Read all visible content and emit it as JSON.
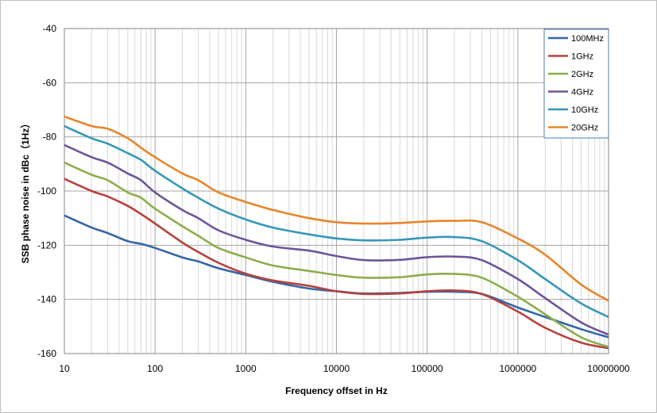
{
  "chart_data": {
    "type": "line",
    "xlabel": "Frequency offset in Hz",
    "ylabel": "SSB phase noise in dBc（1Hz）",
    "xscale": "log",
    "xlim": [
      10,
      10000000
    ],
    "ylim": [
      -160,
      -40
    ],
    "grid": true,
    "legend_position": "top-right",
    "x_ticks": [
      "10",
      "100",
      "1000",
      "10000",
      "100000",
      "1000000",
      "10000000"
    ],
    "y_ticks": [
      "-40",
      "-60",
      "-80",
      "-100",
      "-120",
      "-140",
      "-160"
    ],
    "x": [
      10,
      20,
      30,
      50,
      70,
      100,
      200,
      300,
      500,
      1000,
      2000,
      5000,
      10000,
      20000,
      50000,
      100000,
      200000,
      400000,
      1000000,
      2000000,
      5000000,
      10000000
    ],
    "series": [
      {
        "name": "100MHz",
        "color": "#3565A8",
        "values": [
          -109,
          -113.5,
          -115.5,
          -118.5,
          -119.5,
          -121,
          -124.5,
          -126,
          -128.5,
          -131,
          -133.5,
          -136,
          -137,
          -137.8,
          -137.6,
          -137.2,
          -137.2,
          -138,
          -143,
          -146.5,
          -151,
          -154
        ]
      },
      {
        "name": "1GHz",
        "color": "#B6413D",
        "values": [
          -95.5,
          -100,
          -102,
          -105.5,
          -108.5,
          -112,
          -119,
          -122.5,
          -126.5,
          -130.5,
          -133,
          -135,
          -137,
          -138,
          -137.8,
          -137,
          -136.7,
          -138,
          -144.5,
          -150.5,
          -156,
          -158
        ]
      },
      {
        "name": "2GHz",
        "color": "#8BAE4A",
        "values": [
          -89.5,
          -94,
          -96,
          -100.5,
          -102.5,
          -106.5,
          -113,
          -116.5,
          -121,
          -124.5,
          -127.5,
          -129.5,
          -131,
          -132,
          -131.8,
          -130.8,
          -130.6,
          -132,
          -139,
          -145.5,
          -154,
          -157.5
        ]
      },
      {
        "name": "4GHz",
        "color": "#6E5598",
        "values": [
          -83,
          -87.5,
          -89.5,
          -93.5,
          -96,
          -100.5,
          -107,
          -110,
          -114.5,
          -118,
          -120.5,
          -122,
          -124,
          -125.5,
          -125.4,
          -124.4,
          -124.2,
          -125.5,
          -132.5,
          -139.5,
          -148.5,
          -153
        ]
      },
      {
        "name": "10GHz",
        "color": "#3598B7",
        "values": [
          -76,
          -80.5,
          -82.5,
          -86,
          -88.5,
          -92.5,
          -99,
          -102.5,
          -106.5,
          -110.5,
          -113.5,
          -116,
          -117.5,
          -118.2,
          -118,
          -117.2,
          -117,
          -118.5,
          -125.5,
          -132.5,
          -141.5,
          -146.5
        ]
      },
      {
        "name": "20GHz",
        "color": "#E8852B",
        "values": [
          -72.5,
          -76,
          -77,
          -80.5,
          -84,
          -87.5,
          -93.5,
          -96,
          -100.5,
          -104,
          -107,
          -110,
          -111.5,
          -112,
          -111.8,
          -111.2,
          -111,
          -111.5,
          -117.5,
          -123.5,
          -134.5,
          -140.5
        ]
      }
    ]
  }
}
